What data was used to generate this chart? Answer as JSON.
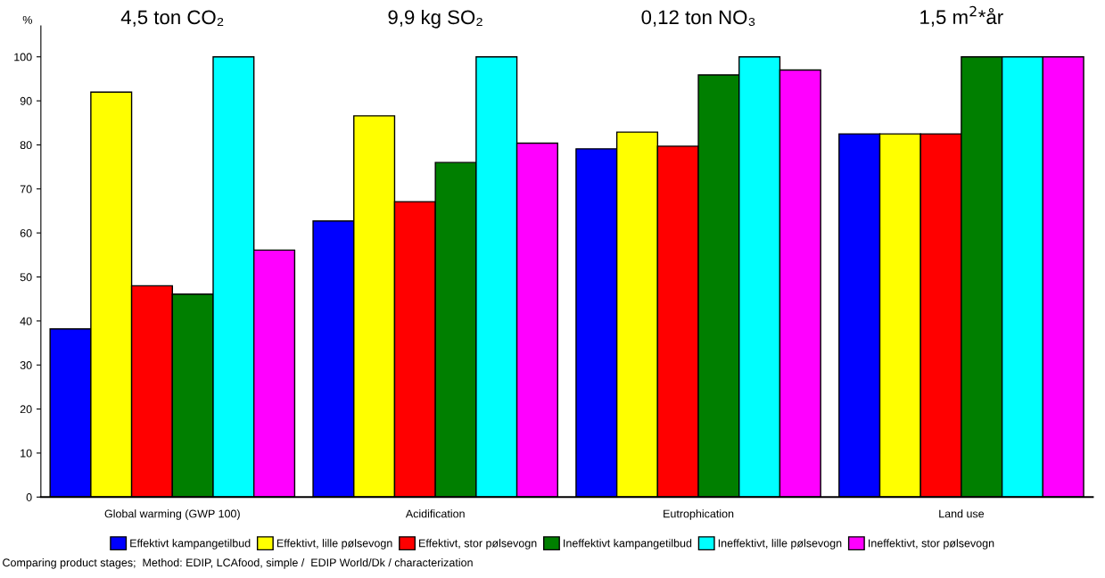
{
  "chart_data": {
    "type": "bar",
    "ylabel": "%",
    "categories": [
      "Global warming (GWP 100)",
      "Acidification",
      "Eutrophication",
      "Land use"
    ],
    "series": [
      {
        "name": "Effektivt kampangetilbud",
        "color": "#0000ff",
        "values": [
          38.2,
          62.7,
          79.1,
          82.5
        ]
      },
      {
        "name": "Effektivt, lille pølsevogn",
        "color": "#ffff00",
        "values": [
          92.0,
          86.6,
          82.9,
          82.5
        ]
      },
      {
        "name": "Effektivt, stor pølsevogn",
        "color": "#ff0000",
        "values": [
          48.0,
          67.1,
          79.7,
          82.5
        ]
      },
      {
        "name": "Ineffektivt kampangetilbud",
        "color": "#007f00",
        "values": [
          46.1,
          76.0,
          95.9,
          100
        ]
      },
      {
        "name": "Ineffektivt, lille pølsevogn",
        "color": "#00ffff",
        "values": [
          100,
          100,
          100,
          100
        ]
      },
      {
        "name": "Ineffektivt, stor pølsevogn",
        "color": "#ff00ff",
        "values": [
          56.1,
          80.4,
          97.0,
          100
        ]
      }
    ],
    "annotations": [
      "4,5 ton CO₂",
      "9,9 kg SO₂",
      "0,12 ton NO₃",
      "1,5 m$^{2}$*år",
      "Comparing product stages;  Method: EDIP, LCAfood, simple /  EDIP World/Dk / characterization"
    ],
    "ylim": [
      0,
      107
    ],
    "yticks": [
      0,
      10,
      20,
      30,
      40,
      50,
      60,
      70,
      80,
      90,
      100
    ],
    "grid": false,
    "legend": "bottom"
  }
}
